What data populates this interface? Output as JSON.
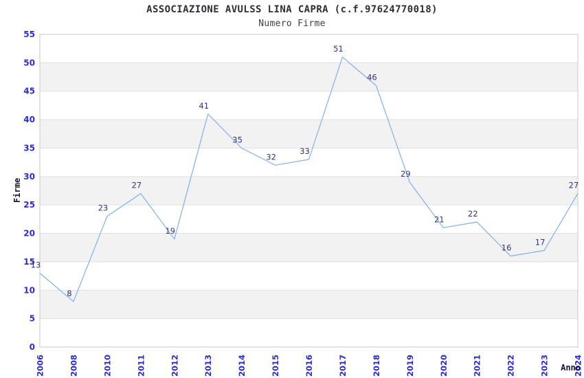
{
  "chart_data": {
    "type": "line",
    "title": "ASSOCIAZIONE AVULSS LINA CAPRA (c.f.97624770018)",
    "subtitle": "Numero Firme",
    "xlabel": "Anno",
    "ylabel": "Firme",
    "categories": [
      "2006",
      "2008",
      "2010",
      "2011",
      "2012",
      "2013",
      "2014",
      "2015",
      "2016",
      "2017",
      "2018",
      "2019",
      "2020",
      "2021",
      "2022",
      "2023",
      "2024"
    ],
    "values": [
      13,
      8,
      23,
      27,
      19,
      41,
      35,
      32,
      33,
      51,
      46,
      29,
      21,
      22,
      16,
      17,
      27
    ],
    "data_labels_visible": true,
    "ylim": [
      0,
      55
    ],
    "yticks": [
      0,
      5,
      10,
      15,
      20,
      25,
      30,
      35,
      40,
      45,
      50,
      55
    ],
    "grid": true,
    "banded_rows": true,
    "legend_position": "none",
    "colors": {
      "line": "#7db1e8",
      "tick_label": "#2b2bd5",
      "data_label": "#32327d",
      "band_fill": "#f2f2f2",
      "grid_line": "#e0e0e0",
      "plot_border": "#c9c9c9",
      "background": "#ffffff",
      "title": "#2e2e38",
      "subtitle": "#3e3e4a",
      "axis_title": "#16162e"
    }
  }
}
